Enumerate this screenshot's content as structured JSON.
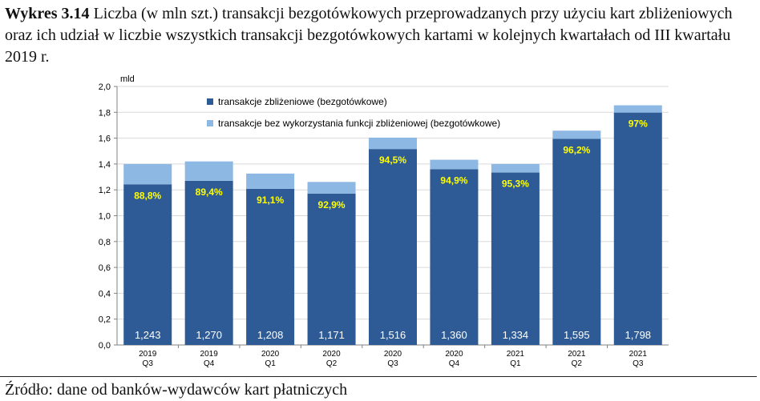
{
  "caption": {
    "label": "Wykres 3.14",
    "text": "Liczba (w mln szt.) transakcji bezgotówkowych przeprowadzanych przy użyciu kart zbliżeniowych oraz ich udział w liczbie wszystkich transakcji bezgotówkowych kartami w kolejnych kwartałach od III kwartału 2019 r."
  },
  "source": "Źródło: dane od banków-wydawców kart płatniczych",
  "colors": {
    "contactless": "#2e5b96",
    "other": "#8db8e3",
    "pct_label": "#ffff00",
    "value_label": "#ffffff",
    "grid": "#d9d9d9",
    "axis": "#808080"
  },
  "chart_data": {
    "type": "bar",
    "stacked": true,
    "unit_label": "mld",
    "ylim": [
      0,
      2.0
    ],
    "yticks": [
      "0,0",
      "0,2",
      "0,4",
      "0,6",
      "0,8",
      "1,0",
      "1,2",
      "1,4",
      "1,6",
      "1,8",
      "2,0"
    ],
    "ytick_values": [
      0,
      0.2,
      0.4,
      0.6,
      0.8,
      1.0,
      1.2,
      1.4,
      1.6,
      1.8,
      2.0
    ],
    "grid": "horizontal",
    "legend_placement": "top-left",
    "categories": [
      {
        "year": "2019",
        "quarter": "Q3"
      },
      {
        "year": "2019",
        "quarter": "Q4"
      },
      {
        "year": "2020",
        "quarter": "Q1"
      },
      {
        "year": "2020",
        "quarter": "Q2"
      },
      {
        "year": "2020",
        "quarter": "Q3"
      },
      {
        "year": "2020",
        "quarter": "Q4"
      },
      {
        "year": "2021",
        "quarter": "Q1"
      },
      {
        "year": "2021",
        "quarter": "Q2"
      },
      {
        "year": "2021",
        "quarter": "Q3"
      }
    ],
    "series": [
      {
        "name": "transakcje zbliżeniowe (bezgotówkowe)",
        "values": [
          1.243,
          1.27,
          1.208,
          1.171,
          1.516,
          1.36,
          1.334,
          1.595,
          1.798
        ],
        "value_labels": [
          "1,243",
          "1,270",
          "1,208",
          "1,171",
          "1,516",
          "1,360",
          "1,334",
          "1,595",
          "1,798"
        ],
        "share_labels": [
          "88,8%",
          "89,4%",
          "91,1%",
          "92,9%",
          "94,5%",
          "94,9%",
          "95,3%",
          "96,2%",
          "97%"
        ]
      },
      {
        "name": "transakcje bez wykorzystania funkcji zbliżeniowej (bezgotówkowe)",
        "values": [
          0.157,
          0.15,
          0.118,
          0.09,
          0.088,
          0.073,
          0.066,
          0.063,
          0.056
        ]
      }
    ]
  }
}
